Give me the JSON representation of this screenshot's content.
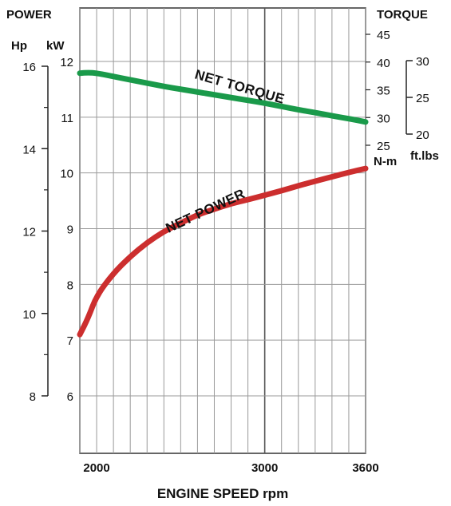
{
  "chart_data": {
    "type": "line",
    "x": [
      1900,
      1950,
      2000,
      2100,
      2200,
      2300,
      2400,
      2500,
      2600,
      2700,
      2800,
      2900,
      3000,
      3100,
      3200,
      3300,
      3400,
      3500,
      3600
    ],
    "xlim": [
      1900,
      3600
    ],
    "x_grid": [
      1900,
      2000,
      2100,
      2200,
      2300,
      2400,
      2500,
      2600,
      2700,
      2800,
      2900,
      3000,
      3100,
      3200,
      3300,
      3400,
      3500,
      3600
    ],
    "xticks": [
      2000,
      3000,
      3600
    ],
    "xlabel": "ENGINE SPEED rpm",
    "grid": true,
    "series": [
      {
        "name": "NET TORQUE",
        "axis": "right_nm",
        "color": "#1a9a4a",
        "values": [
          38.0,
          38.1,
          38.0,
          37.4,
          36.8,
          36.2,
          35.6,
          35.1,
          34.6,
          34.1,
          33.6,
          33.1,
          32.6,
          32.0,
          31.4,
          30.9,
          30.3,
          29.8,
          29.2
        ]
      },
      {
        "name": "NET POWER",
        "axis": "left_kw",
        "color": "#cc2e2e",
        "values": [
          7.1,
          7.4,
          7.8,
          8.2,
          8.5,
          8.75,
          8.95,
          9.1,
          9.25,
          9.35,
          9.45,
          9.52,
          9.6,
          9.68,
          9.77,
          9.85,
          9.93,
          10.01,
          10.08
        ]
      }
    ],
    "axes": {
      "left_kw": {
        "label": "kW",
        "range": [
          6,
          12
        ],
        "ticks": [
          6,
          7,
          8,
          9,
          10,
          11,
          12
        ]
      },
      "left_hp": {
        "label": "Hp",
        "range": [
          8,
          16
        ],
        "ticks": [
          8,
          10,
          12,
          14,
          16
        ],
        "minor_ticks": [
          9,
          11,
          13,
          15
        ]
      },
      "right_nm": {
        "label": "N-m",
        "range": [
          25,
          45
        ],
        "ticks": [
          25,
          30,
          35,
          40,
          45
        ]
      },
      "right_ftlbs": {
        "label": "ft.lbs",
        "range": [
          20,
          30
        ],
        "ticks": [
          20,
          25,
          30
        ]
      }
    },
    "left_title": "POWER",
    "right_title": "TORQUE"
  }
}
